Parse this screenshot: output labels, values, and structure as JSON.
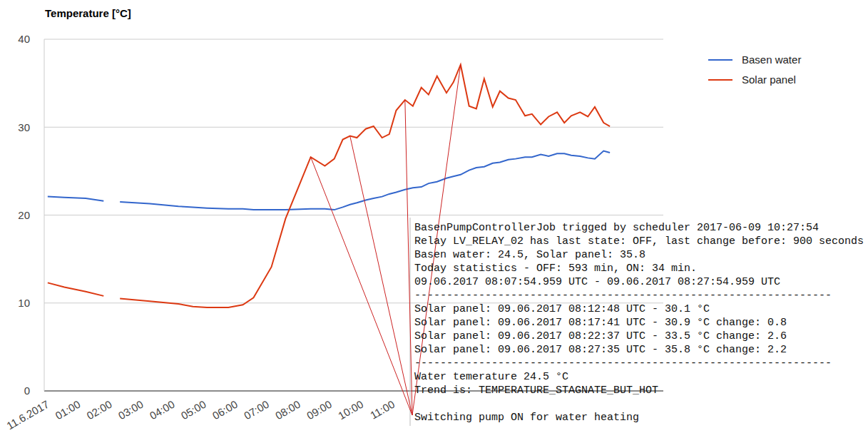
{
  "chart_data": {
    "type": "line",
    "ylabel": "Temperature [°C]",
    "x": [
      0.11,
      0.64,
      1.32,
      1.89,
      2.1,
      2.41,
      3.36,
      4.27,
      4.73,
      5.18,
      5.86,
      6.32,
      6.66,
      7.23,
      7.68,
      8.48,
      8.93,
      9.23,
      9.5,
      9.73,
      9.95,
      10.23,
      10.48,
      10.75,
      10.98,
      11.2,
      11.48,
      11.73,
      12,
      12.23,
      12.5,
      12.8,
      13.02,
      13.25,
      13.52,
      13.75,
      14,
      14.27,
      14.5,
      14.77,
      15,
      15.3,
      15.52,
      15.8,
      16.05,
      16.32,
      16.55,
      16.77,
      17.05,
      17.3,
      17.52,
      17.8,
      18
    ],
    "series": [
      {
        "name": "Basen water",
        "color": "#3366cc",
        "values": [
          22.1,
          22,
          21.9,
          21.6,
          null,
          21.5,
          21.3,
          21,
          20.9,
          20.8,
          20.7,
          20.7,
          20.6,
          20.6,
          20.6,
          20.7,
          20.7,
          20.6,
          20.9,
          21.2,
          21.4,
          21.7,
          21.9,
          22.1,
          22.4,
          22.6,
          22.9,
          23.1,
          23.2,
          23.6,
          23.8,
          24.2,
          24.4,
          24.6,
          25.1,
          25.4,
          25.5,
          25.9,
          26,
          26.3,
          26.4,
          26.6,
          26.6,
          26.9,
          26.7,
          27,
          27,
          26.8,
          26.7,
          26.5,
          26.4,
          27.3,
          27.1
        ]
      },
      {
        "name": "Solar panel",
        "color": "#dc3912",
        "values": [
          12.3,
          11.8,
          11.3,
          10.8,
          null,
          10.5,
          10.2,
          9.9,
          9.6,
          9.5,
          9.5,
          9.8,
          10.6,
          14.1,
          19.6,
          26.6,
          25.6,
          26.4,
          28.6,
          29,
          28.8,
          29.8,
          30.1,
          28.8,
          29.2,
          31.9,
          33.1,
          32.4,
          34.5,
          33.7,
          35.8,
          33.9,
          35.1,
          37.1,
          32.4,
          32.1,
          35.5,
          32.3,
          34.1,
          33.3,
          33.1,
          31.3,
          31.5,
          30.3,
          31.2,
          31.7,
          30.5,
          31.3,
          31.7,
          31.2,
          32.3,
          30.5,
          30.1
        ]
      }
    ],
    "xlim": [
      0,
      19.7
    ],
    "xticks": [
      {
        "value": 0,
        "label": "11.6.2017"
      },
      {
        "value": 1,
        "label": "01:00"
      },
      {
        "value": 2,
        "label": "02:00"
      },
      {
        "value": 3,
        "label": "03:00"
      },
      {
        "value": 4,
        "label": "04:00"
      },
      {
        "value": 5,
        "label": "05:00"
      },
      {
        "value": 6,
        "label": "06:00"
      },
      {
        "value": 7,
        "label": "07:00"
      },
      {
        "value": 8,
        "label": "08:00"
      },
      {
        "value": 9,
        "label": "09:00"
      },
      {
        "value": 10,
        "label": "10:00"
      },
      {
        "value": 11,
        "label": "11:00"
      }
    ],
    "ylim": [
      0,
      40
    ],
    "yticks": [
      0,
      10,
      20,
      30,
      40
    ],
    "grid": true,
    "legend": "right",
    "annotation": {
      "series": "Solar panel",
      "points": [
        8.48,
        9.73,
        11.48,
        13.25
      ],
      "text": [
        "BasenPumpControllerJob trigged by scheduler 2017-06-09 10:27:54",
        "Relay LV_RELAY_02 has last state: OFF, last change before: 900 seconds",
        "Basen water: 24.5, Solar panel: 35.8",
        "Today statistics - OFF: 593 min, ON: 34 min.",
        "09.06.2017 08:07:54.959 UTC - 09.06.2017 08:27:54.959 UTC",
        "-----------------------------------------------------------------",
        "Solar panel: 09.06.2017 08:12:48 UTC - 30.1 °C",
        "Solar panel: 09.06.2017 08:17:41 UTC - 30.9 °C change: 0.8",
        "Solar panel: 09.06.2017 08:22:37 UTC - 33.5 °C change: 2.6",
        "Solar panel: 09.06.2017 08:27:35 UTC - 35.8 °C change: 2.2",
        "-----------------------------------------------------------------",
        "Water temerature 24.5 °C",
        "Trend is: TEMPERATURE_STAGNATE_BUT_HOT",
        "Switching pump ON for water heating"
      ]
    }
  }
}
